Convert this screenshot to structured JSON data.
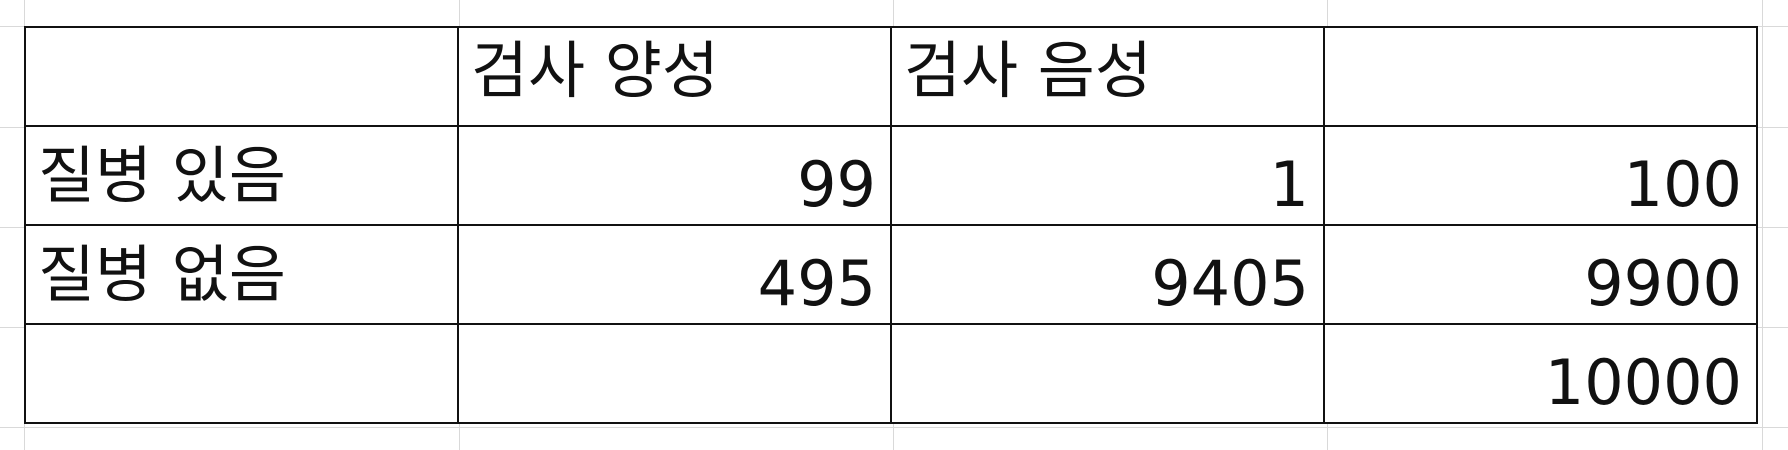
{
  "table": {
    "header": [
      "",
      "검사 양성",
      "검사 음성",
      ""
    ],
    "rows": [
      [
        "질병 있음",
        "99",
        "1",
        "100"
      ],
      [
        "질병 없음",
        "495",
        "9405",
        "9900"
      ],
      [
        "",
        "",
        "",
        "10000"
      ]
    ]
  }
}
